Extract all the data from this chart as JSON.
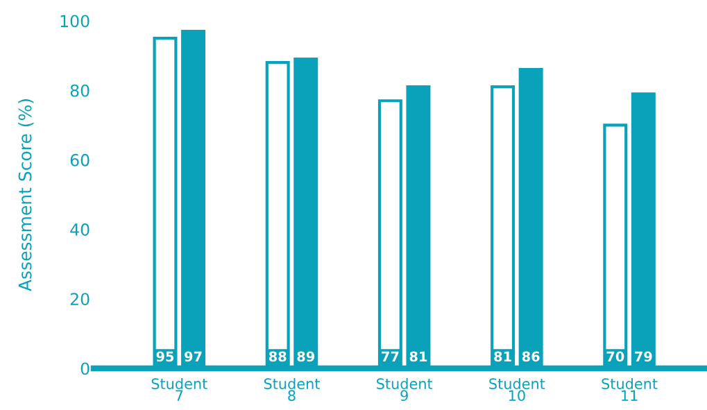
{
  "chart_data": {
    "type": "bar",
    "ylabel": "Assessment Score (%)",
    "categories": [
      "Student\n7",
      "Student\n8",
      "Student\n9",
      "Student\n10",
      "Student\n11"
    ],
    "series": [
      {
        "color": "#ffffff",
        "values": [
          95,
          88,
          77,
          81,
          70
        ]
      },
      {
        "color": "#0aa2bb",
        "values": [
          97,
          89,
          81,
          86,
          79
        ]
      }
    ],
    "ylim": [
      0,
      100
    ],
    "yticks": [
      0,
      20,
      40,
      60,
      80,
      100
    ],
    "grid": false,
    "legend": false,
    "data_labels": true
  }
}
